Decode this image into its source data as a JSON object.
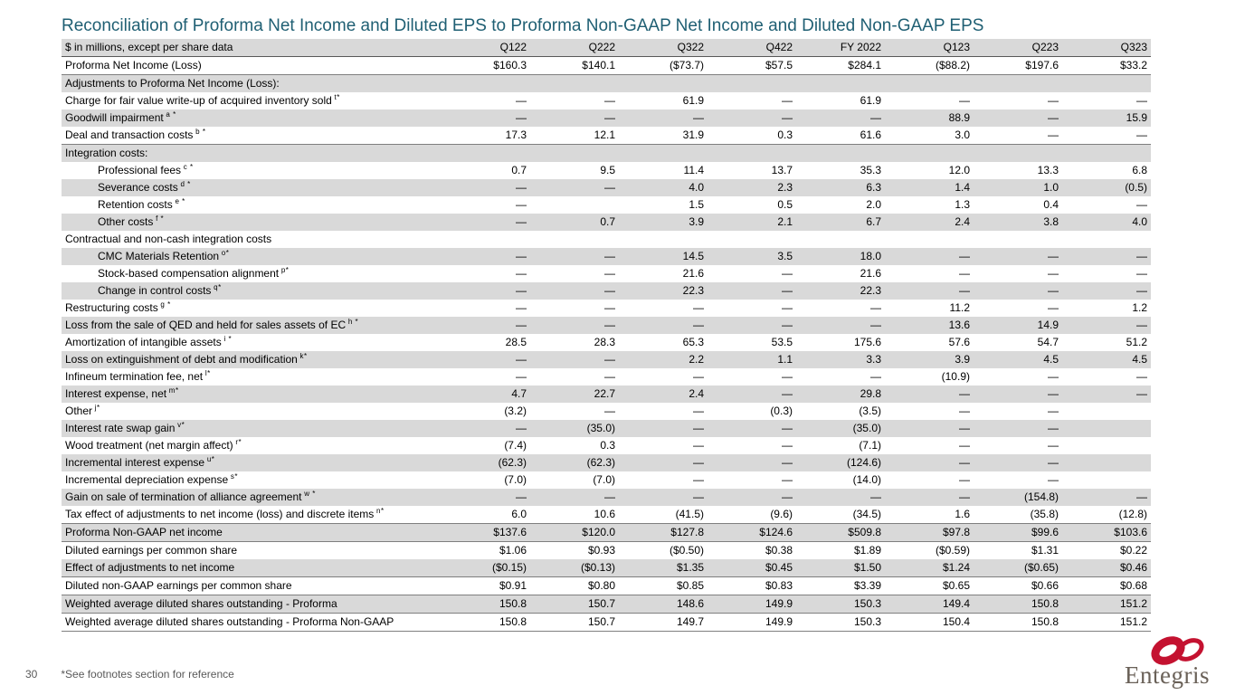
{
  "title": "Reconciliation of Proforma Net Income and Diluted EPS to Proforma Non-GAAP Net Income and Diluted Non-GAAP EPS",
  "colors": {
    "title_teal": "#1F5F73",
    "row_shade": "#D9D9D9",
    "section_border": "#7F7F7F",
    "logo_red": "#C41230",
    "logo_gray": "#6A6158"
  },
  "table": {
    "header_label": "$ in millions, except per share data",
    "columns": [
      "Q122",
      "Q222",
      "Q322",
      "Q422",
      "FY 2022",
      "Q123",
      "Q223",
      "Q323"
    ],
    "rows": [
      {
        "label": "Proforma Net Income (Loss)",
        "sup": "",
        "indent": 0,
        "shaded": false,
        "bb": true,
        "values": [
          "$160.3",
          "$140.1",
          "($73.7)",
          "$57.5",
          "$284.1",
          "($88.2)",
          "$197.6",
          "$33.2"
        ]
      },
      {
        "label": "Adjustments to Proforma Net Income (Loss):",
        "sup": "",
        "indent": 0,
        "shaded": true,
        "bb": false,
        "values": [
          "",
          "",
          "",
          "",
          "",
          "",
          "",
          ""
        ]
      },
      {
        "label": "Charge for fair value write-up of acquired inventory sold",
        "sup": "t*",
        "indent": 0,
        "shaded": false,
        "bb": false,
        "values": [
          "—",
          "—",
          "61.9",
          "—",
          "61.9",
          "—",
          "—",
          "—"
        ]
      },
      {
        "label": "Goodwill impairment",
        "sup": "a *",
        "indent": 0,
        "shaded": true,
        "bb": false,
        "values": [
          "—",
          "—",
          "—",
          "—",
          "—",
          "88.9",
          "—",
          "15.9"
        ]
      },
      {
        "label": "Deal and transaction costs",
        "sup": "b *",
        "indent": 0,
        "shaded": false,
        "bb": true,
        "values": [
          "17.3",
          "12.1",
          "31.9",
          "0.3",
          "61.6",
          "3.0",
          "—",
          "—"
        ]
      },
      {
        "label": "Integration costs:",
        "sup": "",
        "indent": 0,
        "shaded": true,
        "bb": false,
        "values": [
          "",
          "",
          "",
          "",
          "",
          "",
          "",
          ""
        ]
      },
      {
        "label": "Professional fees",
        "sup": "c *",
        "indent": 1,
        "shaded": false,
        "bb": false,
        "values": [
          "0.7",
          "9.5",
          "11.4",
          "13.7",
          "35.3",
          "12.0",
          "13.3",
          "6.8"
        ]
      },
      {
        "label": "Severance costs",
        "sup": "d *",
        "indent": 1,
        "shaded": true,
        "bb": false,
        "values": [
          "—",
          "—",
          "4.0",
          "2.3",
          "6.3",
          "1.4",
          "1.0",
          "(0.5)"
        ]
      },
      {
        "label": "Retention costs",
        "sup": "e *",
        "indent": 1,
        "shaded": false,
        "bb": false,
        "values": [
          "—",
          "",
          "1.5",
          "0.5",
          "2.0",
          "1.3",
          "0.4",
          "—"
        ]
      },
      {
        "label": "Other costs",
        "sup": "f *",
        "indent": 1,
        "shaded": true,
        "bb": false,
        "values": [
          "—",
          "0.7",
          "3.9",
          "2.1",
          "6.7",
          "2.4",
          "3.8",
          "4.0"
        ]
      },
      {
        "label": "Contractual and non-cash integration costs",
        "sup": "",
        "indent": 0,
        "shaded": false,
        "bb": false,
        "values": [
          "",
          "",
          "",
          "",
          "",
          "",
          "",
          ""
        ]
      },
      {
        "label": "CMC Materials Retention",
        "sup": "o*",
        "indent": 1,
        "shaded": true,
        "bb": false,
        "values": [
          "—",
          "—",
          "14.5",
          "3.5",
          "18.0",
          "—",
          "—",
          "—"
        ]
      },
      {
        "label": "Stock-based compensation alignment",
        "sup": "p*",
        "indent": 1,
        "shaded": false,
        "bb": false,
        "values": [
          "—",
          "—",
          "21.6",
          "—",
          "21.6",
          "—",
          "—",
          "—"
        ]
      },
      {
        "label": "Change in control costs",
        "sup": "q*",
        "indent": 1,
        "shaded": true,
        "bb": false,
        "values": [
          "—",
          "—",
          "22.3",
          "—",
          "22.3",
          "—",
          "—",
          "—"
        ]
      },
      {
        "label": "Restructuring costs",
        "sup": "g *",
        "indent": 0,
        "shaded": false,
        "bb": false,
        "values": [
          "—",
          "—",
          "—",
          "—",
          "—",
          "11.2",
          "—",
          "1.2"
        ]
      },
      {
        "label": "Loss from the sale of QED and held for sales assets of EC",
        "sup": "h *",
        "indent": 0,
        "shaded": true,
        "bb": false,
        "values": [
          "—",
          "—",
          "—",
          "—",
          "—",
          "13.6",
          "14.9",
          "—"
        ]
      },
      {
        "label": "Amortization of intangible assets",
        "sup": "i *",
        "indent": 0,
        "shaded": false,
        "bb": false,
        "values": [
          "28.5",
          "28.3",
          "65.3",
          "53.5",
          "175.6",
          "57.6",
          "54.7",
          "51.2"
        ]
      },
      {
        "label": "Loss on extinguishment of debt and modification",
        "sup": "k*",
        "indent": 0,
        "shaded": true,
        "bb": false,
        "values": [
          "—",
          "—",
          "2.2",
          "1.1",
          "3.3",
          "3.9",
          "4.5",
          "4.5"
        ]
      },
      {
        "label": "Infineum termination fee, net",
        "sup": "l*",
        "indent": 0,
        "shaded": false,
        "bb": false,
        "values": [
          "—",
          "—",
          "—",
          "—",
          "—",
          "(10.9)",
          "—",
          "—"
        ]
      },
      {
        "label": "Interest expense, net",
        "sup": "m*",
        "indent": 0,
        "shaded": true,
        "bb": false,
        "values": [
          "4.7",
          "22.7",
          "2.4",
          "—",
          "29.8",
          "—",
          "—",
          "—"
        ]
      },
      {
        "label": "Other",
        "sup": "j*",
        "indent": 0,
        "shaded": false,
        "bb": false,
        "values": [
          "(3.2)",
          "—",
          "—",
          "(0.3)",
          "(3.5)",
          "—",
          "—",
          ""
        ]
      },
      {
        "label": "Interest rate swap gain",
        "sup": "v*",
        "indent": 0,
        "shaded": true,
        "bb": false,
        "values": [
          "—",
          "(35.0)",
          "—",
          "—",
          "(35.0)",
          "—",
          "—",
          ""
        ]
      },
      {
        "label": "Wood treatment (net margin affect)",
        "sup": "r*",
        "indent": 0,
        "shaded": false,
        "bb": false,
        "values": [
          "(7.4)",
          "0.3",
          "—",
          "—",
          "(7.1)",
          "—",
          "—",
          ""
        ]
      },
      {
        "label": "Incremental interest expense",
        "sup": "u*",
        "indent": 0,
        "shaded": true,
        "bb": false,
        "values": [
          "(62.3)",
          "(62.3)",
          "—",
          "—",
          "(124.6)",
          "—",
          "—",
          ""
        ]
      },
      {
        "label": "Incremental depreciation expense",
        "sup": "s*",
        "indent": 0,
        "shaded": false,
        "bb": false,
        "values": [
          "(7.0)",
          "(7.0)",
          "—",
          "—",
          "(14.0)",
          "—",
          "—",
          ""
        ]
      },
      {
        "label": "Gain on sale of termination of alliance agreement",
        "sup": "w *",
        "indent": 0,
        "shaded": true,
        "bb": false,
        "values": [
          "—",
          "—",
          "—",
          "—",
          "—",
          "—",
          "(154.8)",
          "—"
        ]
      },
      {
        "label": "Tax effect of adjustments to net income (loss) and discrete items",
        "sup": "n*",
        "indent": 0,
        "shaded": false,
        "bb": true,
        "values": [
          "6.0",
          "10.6",
          "(41.5)",
          "(9.6)",
          "(34.5)",
          "1.6",
          "(35.8)",
          "(12.8)"
        ]
      },
      {
        "label": "Proforma Non-GAAP net income",
        "sup": "",
        "indent": 0,
        "shaded": true,
        "bb": true,
        "values": [
          "$137.6",
          "$120.0",
          "$127.8",
          "$124.6",
          "$509.8",
          "$97.8",
          "$99.6",
          "$103.6"
        ]
      },
      {
        "label": "Diluted earnings per common share",
        "sup": "",
        "indent": 0,
        "shaded": false,
        "bb": false,
        "values": [
          "$1.06",
          "$0.93",
          "($0.50)",
          "$0.38",
          "$1.89",
          "($0.59)",
          "$1.31",
          "$0.22"
        ]
      },
      {
        "label": "Effect of adjustments to net income",
        "sup": "",
        "indent": 0,
        "shaded": true,
        "bb": true,
        "values": [
          "($0.15)",
          "($0.13)",
          "$1.35",
          "$0.45",
          "$1.50",
          "$1.24",
          "($0.65)",
          "$0.46"
        ]
      },
      {
        "label": "Diluted non-GAAP earnings per common share",
        "sup": "",
        "indent": 0,
        "shaded": false,
        "bb": true,
        "values": [
          "$0.91",
          "$0.80",
          "$0.85",
          "$0.83",
          "$3.39",
          "$0.65",
          "$0.66",
          "$0.68"
        ]
      },
      {
        "label": "Weighted average diluted shares outstanding - Proforma",
        "sup": "",
        "indent": 0,
        "shaded": true,
        "bb": true,
        "values": [
          "150.8",
          "150.7",
          "148.6",
          "149.9",
          "150.3",
          "149.4",
          "150.8",
          "151.2"
        ]
      },
      {
        "label": "Weighted average diluted shares outstanding - Proforma Non-GAAP",
        "sup": "",
        "indent": 0,
        "shaded": false,
        "bb": true,
        "values": [
          "150.8",
          "150.7",
          "149.7",
          "149.9",
          "150.3",
          "150.4",
          "150.8",
          "151.2"
        ]
      }
    ]
  },
  "footer": {
    "page_number": "30",
    "note": "*See footnotes section for reference",
    "logo_text": "Entegris"
  }
}
